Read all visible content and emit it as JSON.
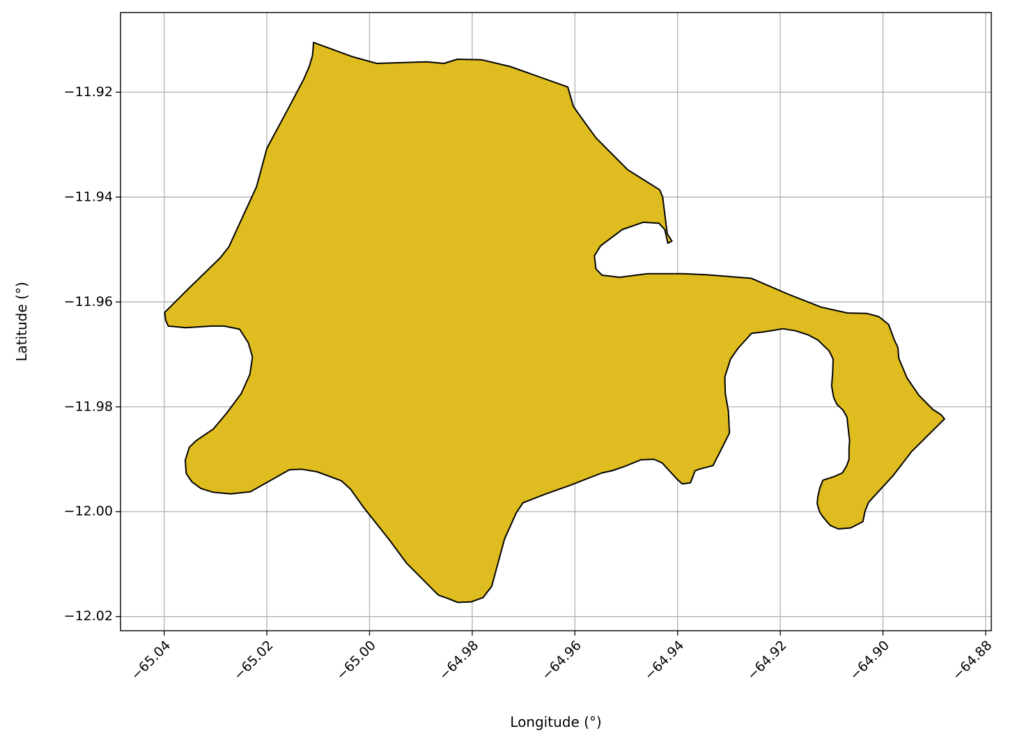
{
  "chart_data": {
    "type": "map",
    "xlabel": "Longitude (°)",
    "ylabel": "Latitude (°)",
    "xlim": [
      -65.0485,
      -64.8789
    ],
    "ylim": [
      -12.0227,
      -11.9048
    ],
    "xticks": [
      -65.04,
      -65.02,
      -65.0,
      -64.98,
      -64.96,
      -64.94,
      -64.92,
      -64.9,
      -64.88
    ],
    "xtick_labels": [
      "−65.04",
      "−65.02",
      "−65.00",
      "−64.98",
      "−64.96",
      "−64.94",
      "−64.92",
      "−64.90",
      "−64.88"
    ],
    "yticks": [
      -11.92,
      -11.94,
      -11.96,
      -11.98,
      -12.0,
      -12.02
    ],
    "ytick_labels": [
      "−11.92",
      "−11.94",
      "−11.96",
      "−11.98",
      "−12.00",
      "−12.02"
    ],
    "grid": true,
    "fill_color": "#DFBD20",
    "edge_color": "#000000",
    "polygon": [
      [
        -65.0109,
        -11.9105
      ],
      [
        -65.0034,
        -11.9132
      ],
      [
        -64.9986,
        -11.9145
      ],
      [
        -64.9889,
        -11.9142
      ],
      [
        -64.9855,
        -11.9145
      ],
      [
        -64.9829,
        -11.9137
      ],
      [
        -64.9782,
        -11.9138
      ],
      [
        -64.9726,
        -11.9151
      ],
      [
        -64.9614,
        -11.919
      ],
      [
        -64.9603,
        -11.9227
      ],
      [
        -64.959,
        -11.9245
      ],
      [
        -64.9559,
        -11.9287
      ],
      [
        -64.9497,
        -11.9348
      ],
      [
        -64.9435,
        -11.9386
      ],
      [
        -64.9429,
        -11.94
      ],
      [
        -64.9424,
        -11.944
      ],
      [
        -64.942,
        -11.947
      ],
      [
        -64.9411,
        -11.9484
      ],
      [
        -64.9419,
        -11.9488
      ],
      [
        -64.9425,
        -11.9462
      ],
      [
        -64.9436,
        -11.945
      ],
      [
        -64.9467,
        -11.9448
      ],
      [
        -64.9508,
        -11.9462
      ],
      [
        -64.955,
        -11.9493
      ],
      [
        -64.9562,
        -11.9512
      ],
      [
        -64.9559,
        -11.9537
      ],
      [
        -64.9547,
        -11.9549
      ],
      [
        -64.9513,
        -11.9553
      ],
      [
        -64.9459,
        -11.9546
      ],
      [
        -64.9388,
        -11.9546
      ],
      [
        -64.9344,
        -11.9548
      ],
      [
        -64.9256,
        -11.9555
      ],
      [
        -64.9185,
        -11.9585
      ],
      [
        -64.912,
        -11.961
      ],
      [
        -64.9069,
        -11.9621
      ],
      [
        -64.9031,
        -11.9622
      ],
      [
        -64.9008,
        -11.9628
      ],
      [
        -64.8989,
        -11.9643
      ],
      [
        -64.8978,
        -11.9672
      ],
      [
        -64.8971,
        -11.9687
      ],
      [
        -64.8969,
        -11.9708
      ],
      [
        -64.8953,
        -11.9745
      ],
      [
        -64.893,
        -11.9778
      ],
      [
        -64.8903,
        -11.9805
      ],
      [
        -64.8887,
        -11.9815
      ],
      [
        -64.888,
        -11.9823
      ],
      [
        -64.8944,
        -11.9885
      ],
      [
        -64.8981,
        -11.9932
      ],
      [
        -64.9028,
        -11.9982
      ],
      [
        -64.9035,
        -11.9999
      ],
      [
        -64.9039,
        -12.0019
      ],
      [
        -64.9063,
        -12.0031
      ],
      [
        -64.9087,
        -12.0033
      ],
      [
        -64.9103,
        -12.0026
      ],
      [
        -64.9117,
        -12.001
      ],
      [
        -64.9123,
        -12.0001
      ],
      [
        -64.9128,
        -11.9985
      ],
      [
        -64.9127,
        -11.9972
      ],
      [
        -64.9123,
        -11.9955
      ],
      [
        -64.9117,
        -11.994
      ],
      [
        -64.9095,
        -11.9933
      ],
      [
        -64.9079,
        -11.9926
      ],
      [
        -64.9071,
        -11.9913
      ],
      [
        -64.9066,
        -11.99
      ],
      [
        -64.9066,
        -11.9879
      ],
      [
        -64.9065,
        -11.9864
      ],
      [
        -64.9066,
        -11.9855
      ],
      [
        -64.9068,
        -11.9839
      ],
      [
        -64.907,
        -11.982
      ],
      [
        -64.9078,
        -11.9806
      ],
      [
        -64.909,
        -11.9795
      ],
      [
        -64.9096,
        -11.9782
      ],
      [
        -64.91,
        -11.976
      ],
      [
        -64.9098,
        -11.9735
      ],
      [
        -64.9097,
        -11.9709
      ],
      [
        -64.9105,
        -11.9693
      ],
      [
        -64.9116,
        -11.9683
      ],
      [
        -64.9126,
        -11.9673
      ],
      [
        -64.9145,
        -11.9663
      ],
      [
        -64.917,
        -11.9655
      ],
      [
        -64.9195,
        -11.9651
      ],
      [
        -64.9212,
        -11.9654
      ],
      [
        -64.9233,
        -11.9657
      ],
      [
        -64.9256,
        -11.966
      ],
      [
        -64.9282,
        -11.9688
      ],
      [
        -64.9297,
        -11.9709
      ],
      [
        -64.9308,
        -11.9743
      ],
      [
        -64.9307,
        -11.9775
      ],
      [
        -64.9301,
        -11.9808
      ],
      [
        -64.9299,
        -11.985
      ],
      [
        -64.9319,
        -11.9889
      ],
      [
        -64.9331,
        -11.9912
      ],
      [
        -64.9358,
        -11.9919
      ],
      [
        -64.9366,
        -11.9922
      ],
      [
        -64.9369,
        -11.993
      ],
      [
        -64.9375,
        -11.9945
      ],
      [
        -64.9383,
        -11.9946
      ],
      [
        -64.9391,
        -11.9947
      ],
      [
        -64.9401,
        -11.9938
      ],
      [
        -64.9418,
        -11.992
      ],
      [
        -64.943,
        -11.9907
      ],
      [
        -64.9446,
        -11.99
      ],
      [
        -64.9471,
        -11.9901
      ],
      [
        -64.9504,
        -11.9914
      ],
      [
        -64.9528,
        -11.9922
      ],
      [
        -64.9547,
        -11.9926
      ],
      [
        -64.961,
        -11.995
      ],
      [
        -64.9656,
        -11.9966
      ],
      [
        -64.9701,
        -11.9983
      ],
      [
        -64.9714,
        -12.0002
      ],
      [
        -64.9737,
        -12.0052
      ],
      [
        -64.9762,
        -12.0142
      ],
      [
        -64.9779,
        -12.0164
      ],
      [
        -64.9802,
        -12.0172
      ],
      [
        -64.9828,
        -12.0173
      ],
      [
        -64.9841,
        -12.0168
      ],
      [
        -64.9866,
        -12.0159
      ],
      [
        -64.9928,
        -12.0098
      ],
      [
        -64.9962,
        -12.0053
      ],
      [
        -65.0013,
        -11.999
      ],
      [
        -65.0037,
        -11.9957
      ],
      [
        -65.0055,
        -11.9941
      ],
      [
        -65.0102,
        -11.9924
      ],
      [
        -65.0132,
        -11.9919
      ],
      [
        -65.0156,
        -11.992
      ],
      [
        -65.0232,
        -11.9962
      ],
      [
        -65.027,
        -11.9966
      ],
      [
        -65.0304,
        -11.9963
      ],
      [
        -65.0328,
        -11.9956
      ],
      [
        -65.0346,
        -11.9943
      ],
      [
        -65.0357,
        -11.9927
      ],
      [
        -65.0359,
        -11.9902
      ],
      [
        -65.0351,
        -11.9877
      ],
      [
        -65.0337,
        -11.9864
      ],
      [
        -65.0304,
        -11.9842
      ],
      [
        -65.0279,
        -11.9813
      ],
      [
        -65.025,
        -11.9775
      ],
      [
        -65.0233,
        -11.9738
      ],
      [
        -65.0228,
        -11.9705
      ],
      [
        -65.0236,
        -11.9678
      ],
      [
        -65.0253,
        -11.9652
      ],
      [
        -65.0283,
        -11.9646
      ],
      [
        -65.0308,
        -11.9646
      ],
      [
        -65.0358,
        -11.9649
      ],
      [
        -65.0392,
        -11.9646
      ],
      [
        -65.0397,
        -11.9635
      ],
      [
        -65.0399,
        -11.962
      ],
      [
        -65.0353,
        -11.9575
      ],
      [
        -65.0291,
        -11.9516
      ],
      [
        -65.0274,
        -11.9495
      ],
      [
        -65.022,
        -11.938
      ],
      [
        -65.02,
        -11.9307
      ],
      [
        -65.0155,
        -11.9225
      ],
      [
        -65.0128,
        -11.9175
      ],
      [
        -65.0117,
        -11.915
      ],
      [
        -65.0111,
        -11.913
      ]
    ]
  }
}
